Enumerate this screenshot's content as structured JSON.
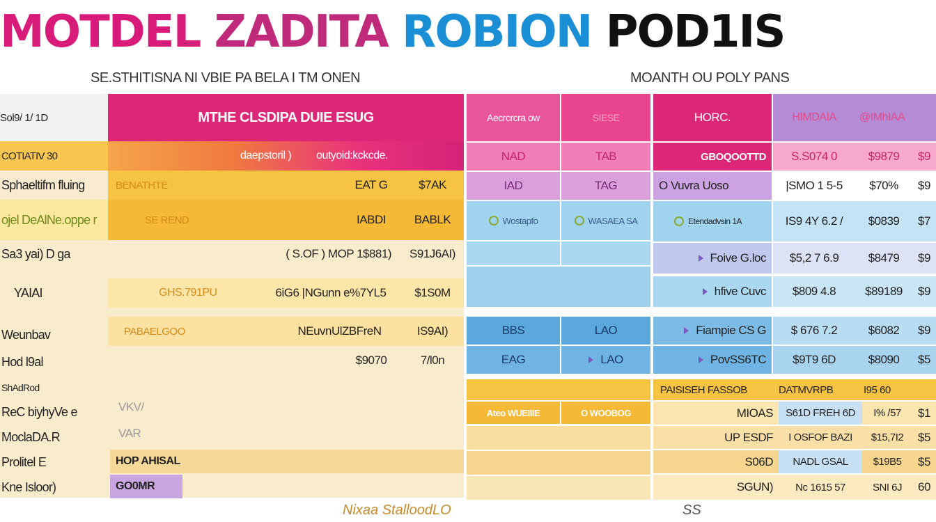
{
  "title": {
    "part1": "MOTDEL",
    "part2": " ZADITA",
    "part3": " ROBION",
    "part4": " POD1IS"
  },
  "subtitles": {
    "left": "SE.STHITISNA NI VBIE PA BELA I TM ONEN",
    "right": "MOANTH OU POLY PANS"
  },
  "left_table": {
    "corner": "Sol9/ 1/ 1D",
    "header_main": "MTHE CLSDIPA DUIE ESUG",
    "subheader_a": "daepstoril )",
    "subheader_b": "outyoid:kckcde.",
    "row_labels": [
      "COTIATIV 30",
      "Sphaeltifm fluing",
      "ojel DeAlNe.oppe r",
      "Sa3 yai) D ga",
      "YAIAI",
      "Weunbav",
      "Hod l9al",
      "ShAdRod",
      "ReC biyhyVe e",
      "MoclaDA.R",
      "Prolitel E",
      "Kne Isloor)"
    ],
    "row1": {
      "a": "BENATHTE",
      "b": "EAT G",
      "c": "$7AK"
    },
    "row2": {
      "a": "SE REND",
      "b": "IABDI",
      "c": "BABLK"
    },
    "row3": {
      "a": "( S.OF ) MOP 1$881)",
      "c": "S91J6AI)"
    },
    "row4": {
      "a": "GHS.791PU",
      "b": "6iG6 |NGunn e%7YL5",
      "c": "$1S0M"
    },
    "row5": {
      "a": "PABAELGOO",
      "b": "NEuvnUlZBFreN",
      "c": "IS9AI)"
    },
    "row6": {
      "b": "$9070",
      "c": "7/l0n"
    },
    "row7": {
      "a": "VKV/"
    },
    "row8": {
      "a": "VAR"
    },
    "footer_a": "HOP AHISAL",
    "footer_b": "GO0MR"
  },
  "mid_table": {
    "header_a": "Aecrcrcra ow",
    "header_b": "SIESE",
    "rows": [
      {
        "a": "NAD",
        "b": "TAB"
      },
      {
        "a": "IAD",
        "b": "TAG"
      },
      {
        "a": "Wostapfo",
        "b": "WASAEA SA"
      },
      {
        "a": "BBS",
        "b": "LAO"
      },
      {
        "a": "EAG",
        "b": "LAO"
      }
    ],
    "tag_a": "Ateo WUEIIIE",
    "tag_b": "O WOOBOG"
  },
  "right_table": {
    "header_label": "HORC.",
    "header_b": "HIMDAIA",
    "header_c": "@IMhIAA",
    "rows": [
      {
        "label": "GBOQOOTTD",
        "b": "S.S074 0",
        "c": "$9879",
        "d": "$9"
      },
      {
        "label": "O Vuvra Uoso",
        "b": "|SMO 1 5-5",
        "c": "$70%",
        "d": "$9"
      },
      {
        "label": "Etendadvsin 1A",
        "b": "IS9 4Y 6.2 /",
        "c": "$0839",
        "d": "$7"
      },
      {
        "label": "Foive G.loc",
        "b": "$5,2 7 6.9",
        "c": "$8479",
        "d": "$9"
      },
      {
        "label": "hfive Cuvc",
        "b": "$809 4.8",
        "c": "$89189",
        "d": "$9"
      },
      {
        "label": "Fiampie CS G",
        "b": "$ 676 7.2",
        "c": "$6082",
        "d": "$9"
      },
      {
        "label": "PovSS6TC",
        "b": "$9T9 6D",
        "c": "$8090",
        "d": "$5"
      }
    ],
    "summary_label": "PAISISEH FASSOB",
    "summary_b": "DATMVRPB",
    "summary_c": "I95 60",
    "sub_rows": [
      {
        "label": "MIOAS",
        "b": "S61D FREH 6D",
        "c": "I% /57",
        "d": "$1"
      },
      {
        "label": "UP ESDF",
        "b": "I OSFOF BAZI",
        "c": "$15,7I2",
        "d": "$5"
      },
      {
        "label": "S06D",
        "b": "NADL GSAL",
        "c": "$19B5",
        "d": "$5"
      },
      {
        "label": "SGUN)",
        "b": "Nc 1615 57",
        "c": "SNI 6J",
        "d": "60"
      }
    ]
  },
  "stamps": {
    "left": "Nixaa StalloodLO",
    "right": "SS"
  },
  "colors": {
    "magenta": "#dc2676",
    "orange": "#f5a54a",
    "yellow": "#f6c342",
    "cream": "#f8eccc",
    "pink": "#f07fb8",
    "violet": "#b58bd6",
    "sky": "#8ccbea",
    "blue": "#5aa8dc"
  }
}
